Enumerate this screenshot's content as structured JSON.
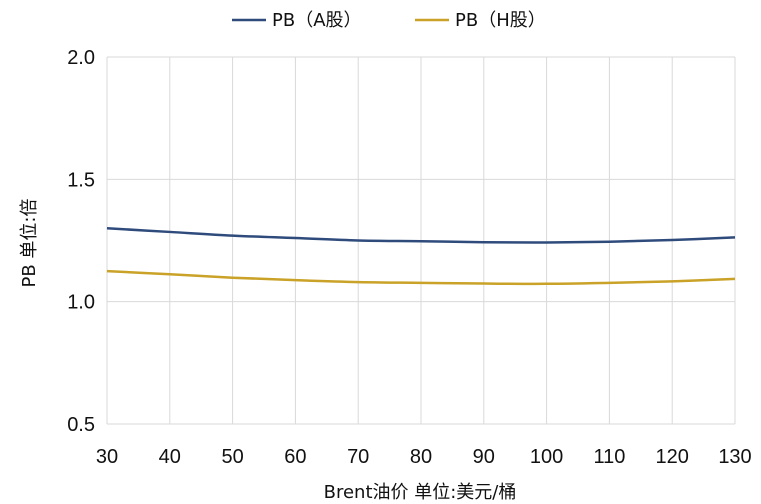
{
  "chart_data": {
    "type": "line",
    "title": "",
    "xlabel": "Brent油价  单位:美元/桶",
    "ylabel": "PB  单位:倍",
    "x": [
      30,
      40,
      50,
      60,
      70,
      80,
      90,
      100,
      110,
      120,
      130
    ],
    "xlim": [
      30,
      130
    ],
    "ylim": [
      0.5,
      2.0
    ],
    "yticks": [
      "0.5",
      "1.0",
      "1.5",
      "2.0"
    ],
    "xticks": [
      "30",
      "40",
      "50",
      "60",
      "70",
      "80",
      "90",
      "100",
      "110",
      "120",
      "130"
    ],
    "grid": true,
    "legend_position": "top-center",
    "series": [
      {
        "name": "PB（A股）",
        "color": "#2f4b7c",
        "values": [
          1.3,
          1.285,
          1.27,
          1.26,
          1.25,
          1.247,
          1.243,
          1.242,
          1.245,
          1.252,
          1.263
        ]
      },
      {
        "name": "PB（H股）",
        "color": "#c9a227",
        "values": [
          1.125,
          1.112,
          1.098,
          1.088,
          1.08,
          1.077,
          1.074,
          1.073,
          1.077,
          1.083,
          1.093
        ]
      }
    ]
  }
}
